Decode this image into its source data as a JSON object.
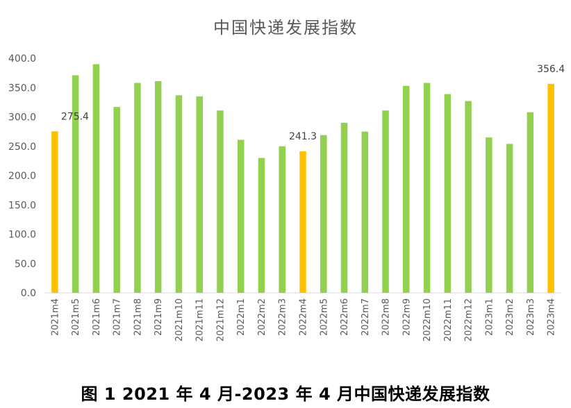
{
  "chart_data": {
    "type": "bar",
    "title": "中国快递发展指数",
    "caption": "图 1 2021 年 4 月-2023 年 4 月中国快递发展指数",
    "categories": [
      "2021m4",
      "2021m5",
      "2021m6",
      "2021m7",
      "2021m8",
      "2021m9",
      "2021m10",
      "2021m11",
      "2021m12",
      "2022m1",
      "2022m2",
      "2022m3",
      "2022m4",
      "2022m5",
      "2022m6",
      "2022m7",
      "2022m8",
      "2022m9",
      "2022m10",
      "2022m11",
      "2022m12",
      "2023m1",
      "2023m2",
      "2023m3",
      "2023m4"
    ],
    "values": [
      275.4,
      371,
      390,
      317,
      358,
      361,
      337,
      335,
      311,
      261,
      230,
      250,
      241.3,
      269,
      290,
      275,
      311,
      353,
      358,
      339,
      327,
      265,
      254,
      308,
      356.4
    ],
    "highlighted": [
      "2021m4",
      "2022m4",
      "2023m4"
    ],
    "data_labels": [
      {
        "category": "2021m4",
        "text": "275.4"
      },
      {
        "category": "2022m4",
        "text": "241.3"
      },
      {
        "category": "2023m4",
        "text": "356.4"
      }
    ],
    "ylim": [
      0,
      400
    ],
    "yticks": [
      "0.0",
      "50.0",
      "100.0",
      "150.0",
      "200.0",
      "250.0",
      "300.0",
      "350.0",
      "400.0"
    ],
    "grid": false,
    "xlabel": "",
    "ylabel": "",
    "colors": {
      "default": "#92D050",
      "highlight": "#FFC000",
      "axis": "#D9D9D9"
    }
  }
}
